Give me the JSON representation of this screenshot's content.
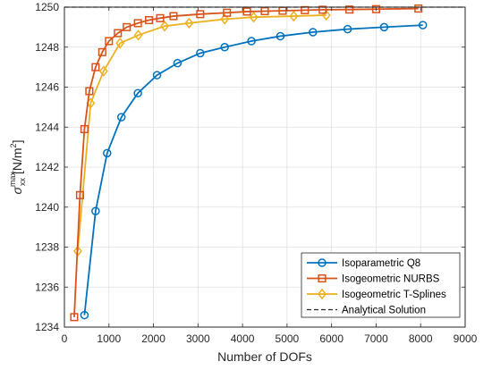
{
  "chart_data": {
    "type": "line",
    "xlabel": "Number of DOFs",
    "ylabel": {
      "symbol": "σ",
      "superscript": "max",
      "subscript": "xx",
      "unit": "[N/m",
      "unit_exp": "2",
      "unit_end": "]"
    },
    "xlim": [
      0,
      9000
    ],
    "ylim": [
      1234,
      1250
    ],
    "xticks": [
      0,
      1000,
      2000,
      3000,
      4000,
      5000,
      6000,
      7000,
      8000,
      9000
    ],
    "yticks": [
      1234,
      1236,
      1238,
      1240,
      1242,
      1244,
      1246,
      1248,
      1250
    ],
    "grid": true,
    "legend_position": "bottom-right",
    "series": [
      {
        "name": "Isoparametric Q8",
        "color": "#0072BD",
        "marker": "circle",
        "x": [
          450,
          700,
          960,
          1280,
          1650,
          2080,
          2540,
          3050,
          3600,
          4200,
          4850,
          5580,
          6360,
          7180,
          8050
        ],
        "y": [
          1234.6,
          1239.8,
          1242.7,
          1244.5,
          1245.7,
          1246.6,
          1247.2,
          1247.7,
          1248.0,
          1248.3,
          1248.55,
          1248.75,
          1248.9,
          1249.0,
          1249.1
        ]
      },
      {
        "name": "Isogeometric NURBS",
        "color": "#D95319",
        "marker": "square",
        "x": [
          220,
          350,
          450,
          560,
          700,
          850,
          1000,
          1200,
          1400,
          1650,
          1900,
          2150,
          2450,
          3050,
          3650,
          4100,
          4500,
          4900,
          5400,
          5800,
          6400,
          7000,
          7950
        ],
        "y": [
          1234.5,
          1240.6,
          1243.9,
          1245.8,
          1247.0,
          1247.75,
          1248.3,
          1248.7,
          1249.0,
          1249.2,
          1249.35,
          1249.45,
          1249.55,
          1249.65,
          1249.72,
          1249.78,
          1249.8,
          1249.82,
          1249.85,
          1249.87,
          1249.88,
          1249.9,
          1249.93
        ]
      },
      {
        "name": "Isogeometric T-Splines",
        "color": "#EDB120",
        "marker": "diamond",
        "x": [
          300,
          590,
          880,
          1250,
          1660,
          2250,
          2800,
          3600,
          4250,
          5150,
          5880
        ],
        "y": [
          1237.8,
          1245.2,
          1246.8,
          1248.2,
          1248.6,
          1249.05,
          1249.2,
          1249.4,
          1249.5,
          1249.55,
          1249.6
        ]
      },
      {
        "name": "Analytical Solution",
        "color": "#262626",
        "marker": "none",
        "dashed": true,
        "x": [
          0,
          9000
        ],
        "y": [
          1250,
          1250
        ]
      }
    ]
  }
}
